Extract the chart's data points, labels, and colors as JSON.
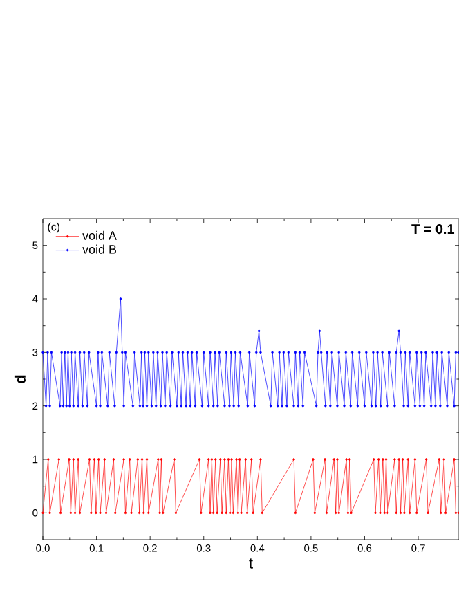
{
  "chart_data": {
    "type": "line",
    "xlabel": "t",
    "ylabel": "d",
    "annotations": [
      "(c)",
      "T = 0.1"
    ],
    "xlim": [
      0,
      0.776
    ],
    "ylim": [
      -0.5,
      5.5
    ],
    "xticks": [
      {
        "value": 0,
        "label": "0.0"
      },
      0.1,
      0.2,
      0.3,
      0.4,
      0.5,
      0.6,
      0.7
    ],
    "yticks": [
      0,
      1,
      2,
      3,
      4,
      5
    ],
    "legend": "top left",
    "marker": "circle",
    "line_style": "solid",
    "grid": false,
    "series": [
      {
        "name": "void A",
        "color": "#ff0000",
        "x": [
          0,
          0.01,
          0.013,
          0.03,
          0.033,
          0.049,
          0.052,
          0.057,
          0.06,
          0.066,
          0.069,
          0.087,
          0.09,
          0.096,
          0.099,
          0.104,
          0.107,
          0.115,
          0.118,
          0.132,
          0.135,
          0.151,
          0.154,
          0.162,
          0.165,
          0.177,
          0.18,
          0.185,
          0.188,
          0.194,
          0.197,
          0.215,
          0.218,
          0.221,
          0.224,
          0.245,
          0.248,
          0.292,
          0.295,
          0.309,
          0.312,
          0.315,
          0.318,
          0.322,
          0.325,
          0.331,
          0.334,
          0.339,
          0.342,
          0.346,
          0.349,
          0.352,
          0.355,
          0.361,
          0.364,
          0.367,
          0.37,
          0.378,
          0.381,
          0.389,
          0.392,
          0.406,
          0.409,
          0.468,
          0.471,
          0.504,
          0.507,
          0.526,
          0.529,
          0.543,
          0.546,
          0.549,
          0.552,
          0.566,
          0.569,
          0.572,
          0.575,
          0.617,
          0.62,
          0.626,
          0.629,
          0.634,
          0.637,
          0.64,
          0.643,
          0.656,
          0.659,
          0.664,
          0.667,
          0.671,
          0.674,
          0.681,
          0.684,
          0.694,
          0.697,
          0.715,
          0.718,
          0.739,
          0.742,
          0.748,
          0.751,
          0.767,
          0.77,
          0.776
        ],
        "values": [
          0,
          1,
          0,
          1,
          0,
          1,
          0,
          1,
          0,
          1,
          0,
          1,
          0,
          1,
          0,
          1,
          0,
          1,
          0,
          1,
          0,
          1,
          0,
          1,
          0,
          1,
          0,
          1,
          0,
          1,
          0,
          1,
          0,
          1,
          0,
          1,
          0,
          1,
          0,
          1,
          0,
          1,
          0,
          1,
          0,
          1,
          0,
          1,
          0,
          1,
          0,
          1,
          0,
          1,
          0,
          1,
          0,
          1,
          0,
          1,
          0,
          1,
          0,
          1,
          0,
          1,
          0,
          1,
          0,
          1,
          0,
          1,
          0,
          1,
          0,
          1,
          0,
          1,
          0,
          1,
          0,
          1,
          0,
          1,
          0,
          1,
          0,
          1,
          0,
          1,
          0,
          1,
          0,
          1,
          0,
          1,
          0,
          1,
          0,
          1,
          0,
          1,
          0,
          0
        ]
      },
      {
        "name": "void B",
        "color": "#0000ff",
        "x": [
          0,
          0.006,
          0.009,
          0.013,
          0.016,
          0.032,
          0.035,
          0.038,
          0.041,
          0.044,
          0.047,
          0.05,
          0.053,
          0.057,
          0.06,
          0.066,
          0.069,
          0.074,
          0.077,
          0.083,
          0.086,
          0.1,
          0.103,
          0.107,
          0.11,
          0.121,
          0.124,
          0.134,
          0.137,
          0.145,
          0.148,
          0.151,
          0.154,
          0.168,
          0.171,
          0.181,
          0.184,
          0.187,
          0.19,
          0.194,
          0.197,
          0.203,
          0.206,
          0.211,
          0.214,
          0.22,
          0.223,
          0.228,
          0.231,
          0.238,
          0.241,
          0.25,
          0.253,
          0.258,
          0.261,
          0.267,
          0.27,
          0.275,
          0.278,
          0.284,
          0.287,
          0.297,
          0.3,
          0.309,
          0.312,
          0.318,
          0.321,
          0.326,
          0.329,
          0.339,
          0.342,
          0.348,
          0.351,
          0.356,
          0.359,
          0.365,
          0.368,
          0.382,
          0.385,
          0.395,
          0.398,
          0.403,
          0.406,
          0.425,
          0.428,
          0.438,
          0.441,
          0.446,
          0.449,
          0.455,
          0.458,
          0.468,
          0.471,
          0.476,
          0.479,
          0.485,
          0.488,
          0.51,
          0.513,
          0.516,
          0.519,
          0.527,
          0.53,
          0.536,
          0.539,
          0.549,
          0.552,
          0.562,
          0.565,
          0.574,
          0.577,
          0.587,
          0.59,
          0.6,
          0.603,
          0.613,
          0.616,
          0.621,
          0.624,
          0.63,
          0.633,
          0.643,
          0.646,
          0.656,
          0.659,
          0.664,
          0.667,
          0.673,
          0.676,
          0.681,
          0.684,
          0.694,
          0.697,
          0.703,
          0.706,
          0.711,
          0.714,
          0.724,
          0.727,
          0.732,
          0.735,
          0.741,
          0.744,
          0.754,
          0.757,
          0.767,
          0.77,
          0.776
        ],
        "values": [
          3,
          2,
          3,
          2,
          3,
          2,
          3,
          2,
          3,
          2,
          3,
          2,
          3,
          2,
          3,
          2,
          3,
          2,
          3,
          2,
          3,
          2,
          3,
          2,
          3,
          2,
          3,
          2,
          3,
          4,
          3,
          2,
          3,
          2,
          3,
          2,
          3,
          2,
          3,
          2,
          3,
          2,
          3,
          2,
          3,
          2,
          3,
          2,
          3,
          2,
          3,
          2,
          3,
          2,
          3,
          2,
          3,
          2,
          3,
          2,
          3,
          2,
          3,
          2,
          3,
          2,
          3,
          2,
          3,
          2,
          3,
          2,
          3,
          2,
          3,
          2,
          3,
          2,
          3,
          2,
          3,
          3.4,
          3,
          2,
          3,
          2,
          3,
          2,
          3,
          2,
          3,
          2,
          3,
          2,
          3,
          2,
          3,
          2,
          3,
          3.4,
          3,
          2,
          3,
          2,
          3,
          2,
          3,
          2,
          3,
          2,
          3,
          2,
          3,
          2,
          3,
          2,
          3,
          2,
          3,
          2,
          3,
          2,
          3,
          2,
          3,
          3.4,
          3,
          2,
          3,
          2,
          3,
          2,
          3,
          2,
          3,
          2,
          3,
          2,
          3,
          2,
          3,
          2,
          3,
          2,
          3,
          2,
          3,
          3
        ]
      }
    ]
  }
}
